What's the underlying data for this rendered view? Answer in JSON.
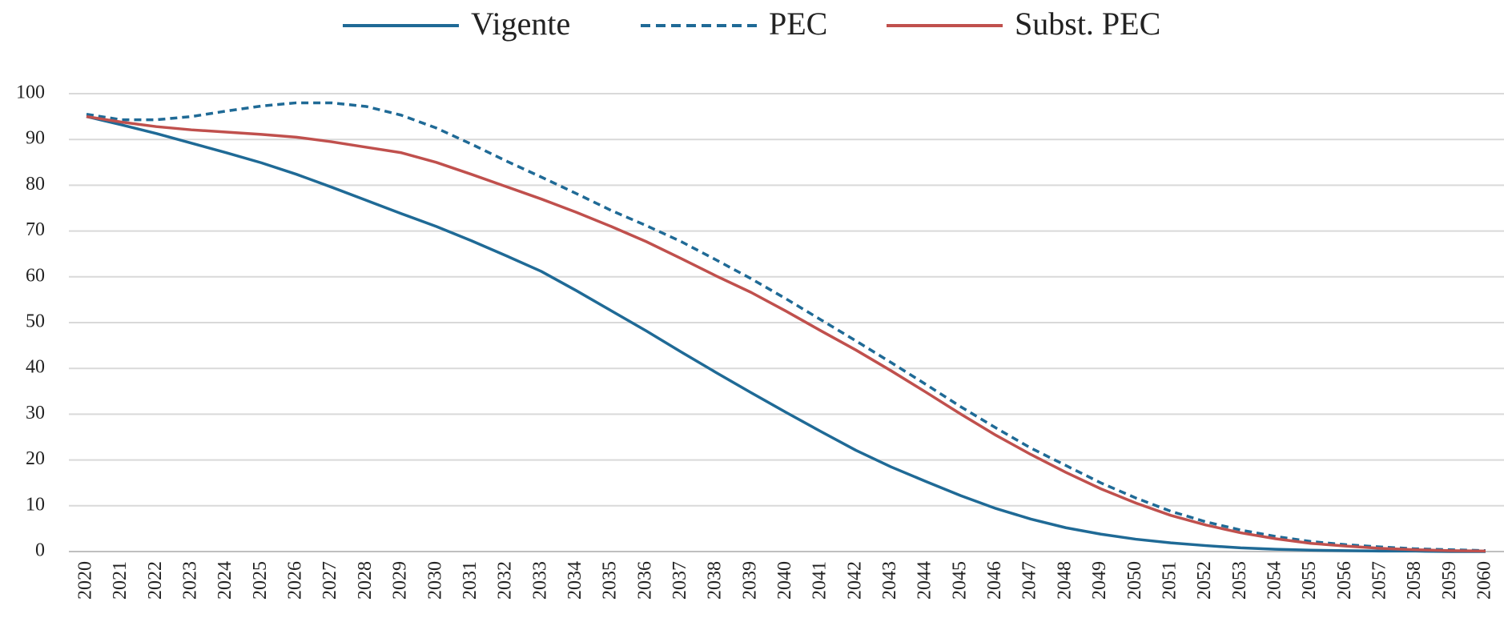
{
  "chart_data": {
    "type": "line",
    "categories": [
      "2020",
      "2021",
      "2022",
      "2023",
      "2024",
      "2025",
      "2026",
      "2027",
      "2028",
      "2029",
      "2030",
      "2031",
      "2032",
      "2033",
      "2034",
      "2035",
      "2036",
      "2037",
      "2038",
      "2039",
      "2040",
      "2041",
      "2042",
      "2043",
      "2044",
      "2045",
      "2046",
      "2047",
      "2048",
      "2049",
      "2050",
      "2051",
      "2052",
      "2053",
      "2054",
      "2055",
      "2056",
      "2057",
      "2058",
      "2059",
      "2060"
    ],
    "series": [
      {
        "name": "Vigente",
        "color": "#1f6a96",
        "line_style": "solid",
        "values": [
          95,
          93.2,
          91.3,
          89.2,
          87.1,
          84.9,
          82.4,
          79.6,
          76.7,
          73.8,
          71.0,
          67.9,
          64.6,
          61.2,
          57.0,
          52.6,
          48.2,
          43.6,
          39.1,
          34.7,
          30.4,
          26.2,
          22.1,
          18.5,
          15.3,
          12.2,
          9.4,
          7.1,
          5.2,
          3.8,
          2.7,
          1.9,
          1.3,
          0.8,
          0.5,
          0.3,
          0.2,
          0.1,
          0.1,
          0,
          0
        ]
      },
      {
        "name": "PEC",
        "color": "#1f6a96",
        "line_style": "dashed",
        "values": [
          95.5,
          94.3,
          94.3,
          95,
          96.2,
          97.3,
          98.0,
          98.0,
          97.2,
          95.3,
          92.5,
          89,
          85.3,
          81.8,
          78.2,
          74.5,
          71.2,
          67.7,
          63.7,
          59.6,
          55.2,
          50.6,
          46,
          41.3,
          36.5,
          31.6,
          27,
          22.6,
          18.8,
          15,
          11.7,
          8.8,
          6.5,
          4.7,
          3.3,
          2.2,
          1.5,
          1,
          0.6,
          0.4,
          0.2
        ]
      },
      {
        "name": "Subst. PEC",
        "color": "#c0504d",
        "line_style": "solid",
        "values": [
          95,
          93.8,
          92.8,
          92.1,
          91.6,
          91.1,
          90.5,
          89.5,
          88.3,
          87.1,
          85,
          82.4,
          79.7,
          77,
          74.1,
          71,
          67.7,
          64,
          60.2,
          56.6,
          52.5,
          48.2,
          44,
          39.5,
          34.8,
          30,
          25.4,
          21.2,
          17.3,
          13.7,
          10.6,
          7.9,
          5.8,
          4.1,
          2.8,
          1.8,
          1.2,
          0.7,
          0.4,
          0.2,
          0.1
        ]
      }
    ],
    "ylim": [
      0,
      100
    ],
    "yticks": [
      0,
      10,
      20,
      30,
      40,
      50,
      60,
      70,
      80,
      90,
      100
    ],
    "grid": true,
    "legend": "top"
  }
}
